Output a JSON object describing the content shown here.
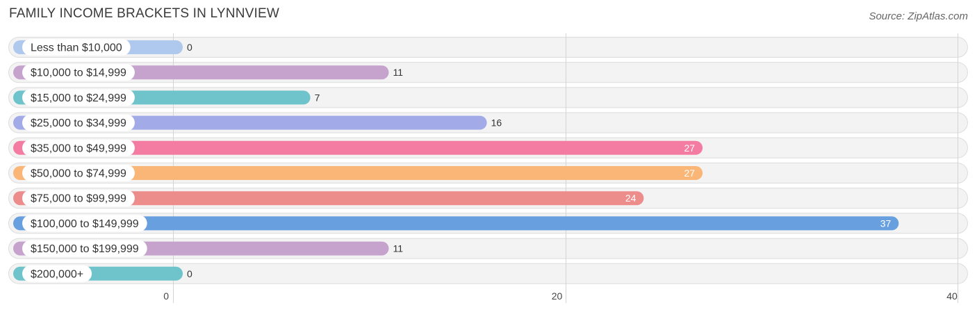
{
  "header": {
    "title": "FAMILY INCOME BRACKETS IN LYNNVIEW",
    "source": "Source: ZipAtlas.com"
  },
  "chart_data": {
    "type": "bar",
    "orientation": "horizontal",
    "title": "FAMILY INCOME BRACKETS IN LYNNVIEW",
    "xlabel": "",
    "ylabel": "",
    "xlim": [
      0,
      40
    ],
    "xticks": [
      0,
      20,
      40
    ],
    "grid": true,
    "categories": [
      "Less than $10,000",
      "$10,000 to $14,999",
      "$15,000 to $24,999",
      "$25,000 to $34,999",
      "$35,000 to $49,999",
      "$50,000 to $74,999",
      "$75,000 to $99,999",
      "$100,000 to $149,999",
      "$150,000 to $199,999",
      "$200,000+"
    ],
    "values": [
      0,
      11,
      7,
      16,
      27,
      27,
      24,
      37,
      11,
      0
    ],
    "colors": [
      "#aec8ee",
      "#c6a3cd",
      "#6ec4ca",
      "#a3aae8",
      "#f47ca2",
      "#f9b677",
      "#ec8d8b",
      "#689fdf",
      "#c6a3cd",
      "#6ec4ca"
    ]
  }
}
